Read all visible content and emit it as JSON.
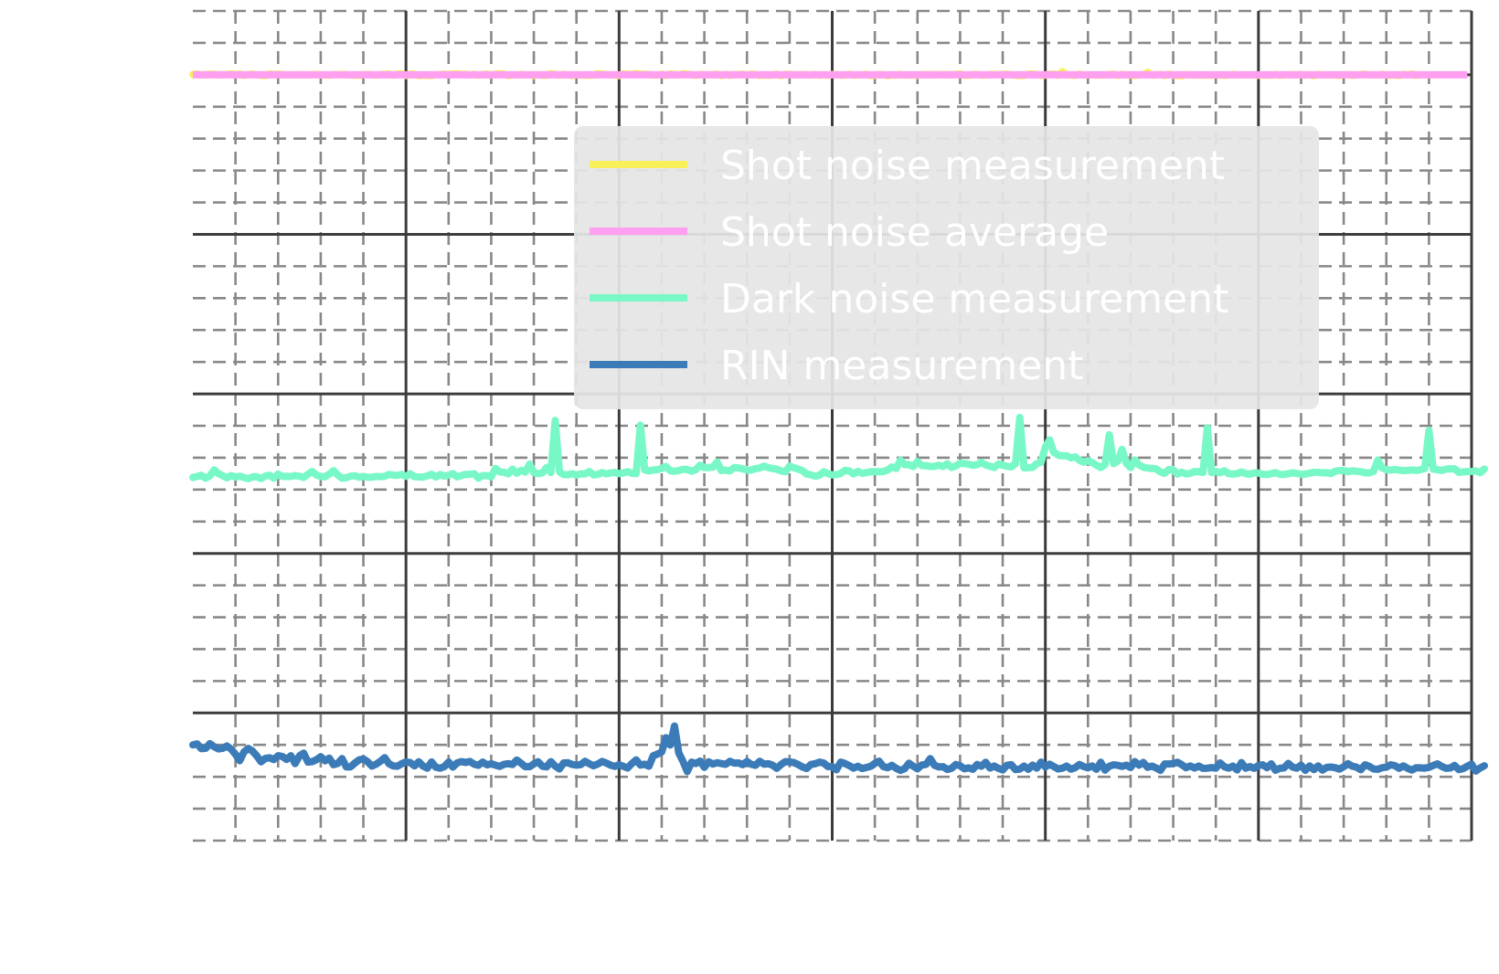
{
  "chart_data": {
    "type": "line",
    "title": "",
    "xlabel": "",
    "ylabel": "",
    "xlim": [
      0,
      300
    ],
    "ylim": [
      -8,
      44
    ],
    "x_major_step": 50,
    "x_minor_step": 10,
    "y_major_step": 10,
    "y_minor_step": 2,
    "grid": true,
    "legend_position": "upper-center-right",
    "x": "0..299 (one point per sample, step 1)",
    "series": [
      {
        "name": "Shot noise measurement",
        "color": "#f7f05a",
        "values": [
          40.02,
          40.05,
          39.98,
          40.01,
          40.04,
          40.03,
          40.0,
          40.0,
          40.02,
          40.05,
          40.01,
          40.05,
          39.96,
          40.02,
          40.04,
          40.0,
          39.96,
          39.94,
          40.06,
          40.01,
          40.04,
          40.01,
          40.0,
          39.99,
          40.0,
          40.01,
          39.99,
          39.99,
          40.02,
          40.03,
          40.0,
          40.0,
          39.97,
          40.02,
          40.01,
          40.03,
          40.02,
          39.98,
          39.98,
          39.96,
          40.01,
          40.02,
          40.01,
          39.97,
          40.02,
          40.03,
          40.05,
          39.97,
          40.05,
          40.06,
          39.95,
          40.05,
          40.05,
          39.95,
          39.97,
          39.96,
          39.95,
          40.01,
          40.01,
          40.04,
          40.02,
          40.05,
          40.06,
          40.03,
          40.04,
          39.99,
          40.04,
          39.97,
          40.02,
          40.04,
          39.98,
          40.04,
          40.06,
          40.04,
          39.95,
          39.99,
          39.99,
          40.03,
          39.99,
          40.01,
          39.94,
          40.01,
          39.97,
          39.97,
          40.07,
          40.03,
          39.97,
          40.03,
          40.01,
          39.95,
          40.02,
          39.98,
          39.96,
          39.96,
          39.98,
          40.08,
          40.03,
          40.03,
          40.0,
          39.99,
          39.94,
          40.06,
          40.03,
          40.03,
          40.08,
          40.04,
          40.03,
          40.03,
          39.98,
          39.99,
          40.04,
          39.95,
          40.06,
          40.02,
          40.0,
          40.06,
          40.05,
          40.0,
          39.96,
          40.03,
          40.01,
          39.99,
          40.01,
          40.04,
          39.94,
          40.04,
          39.96,
          40.02,
          40.01,
          40.04,
          39.99,
          40.04,
          40.03,
          39.95,
          39.98,
          39.96,
          39.98,
          40.05,
          39.94,
          40.02,
          40.04,
          39.99,
          40.01,
          40.01,
          40.01,
          39.97,
          40.03,
          39.97,
          40.01,
          39.96,
          40.02,
          40.01,
          39.97,
          39.98,
          40.04,
          39.97,
          40.0,
          40.0,
          40.04,
          39.95,
          39.96,
          40.03,
          40.01,
          39.94,
          39.99,
          39.97,
          40.03,
          39.98,
          39.98,
          39.99,
          39.96,
          40.02,
          40.01,
          40.01,
          40.01,
          40.01,
          40.03,
          40.01,
          40.0,
          40.02,
          40.06,
          39.96,
          39.96,
          40.02,
          40.03,
          39.97,
          39.99,
          40.01,
          40.03,
          40.01,
          40.02,
          40.04,
          40.0,
          39.97,
          39.94,
          39.96,
          40.04,
          40.05,
          40.02,
          39.96,
          39.97,
          40.03,
          40.05,
          39.96,
          40.2,
          39.98,
          39.99,
          39.96,
          40.05,
          39.98,
          39.99,
          40.0,
          39.98,
          39.98,
          40.0,
          40.01,
          40.05,
          39.96,
          40.04,
          39.99,
          39.98,
          39.95,
          40.0,
          40.0,
          40.15,
          39.97,
          40.0,
          40.03,
          39.95,
          40.05,
          39.97,
          39.95,
          39.93,
          40.02,
          40.0,
          39.97,
          39.99,
          39.98,
          39.98,
          39.97,
          40.01,
          39.98,
          39.96,
          39.98,
          40.03,
          40.0,
          39.98,
          40.0,
          40.0,
          39.99,
          39.96,
          39.99,
          39.98,
          39.97,
          40.03,
          39.96,
          40.0,
          39.99,
          40.01,
          39.99,
          40.03,
          39.97,
          40.02,
          39.93,
          40.03,
          40.0,
          39.98,
          39.99,
          39.99,
          39.95,
          40.0,
          40.02,
          39.96,
          39.99,
          40.02,
          40.04,
          40.0,
          40.0,
          39.98,
          40.04,
          39.98,
          39.96,
          39.99,
          39.95,
          40.03,
          40.0,
          40.05,
          39.96,
          40.0,
          40.0,
          40.0
        ]
      },
      {
        "name": "Shot noise average",
        "color": "#ff9ff0",
        "constant": 40.0
      },
      {
        "name": "Dark noise measurement",
        "color": "#79f8c7",
        "values": [
          14.76,
          14.82,
          14.9,
          14.71,
          14.87,
          15.24,
          15.0,
          14.87,
          14.74,
          14.88,
          14.79,
          14.84,
          14.76,
          14.68,
          14.8,
          14.81,
          14.69,
          14.85,
          14.9,
          14.72,
          14.97,
          14.82,
          14.83,
          14.82,
          14.88,
          14.84,
          14.76,
          14.96,
          15.14,
          14.91,
          14.82,
          14.8,
          14.97,
          15.19,
          14.92,
          14.71,
          14.75,
          14.84,
          14.87,
          14.77,
          14.83,
          14.77,
          14.78,
          14.82,
          14.81,
          14.83,
          14.95,
          14.91,
          14.89,
          14.95,
          14.83,
          14.99,
          14.81,
          14.79,
          14.78,
          14.86,
          14.96,
          14.79,
          14.95,
          14.84,
          14.91,
          15.0,
          14.8,
          14.88,
          14.96,
          14.96,
          14.99,
          14.72,
          14.88,
          14.87,
          14.8,
          15.33,
          15.11,
          15.09,
          14.99,
          15.28,
          15.02,
          15.21,
          15.1,
          15.6,
          15.06,
          15.0,
          15.05,
          15.39,
          15.07,
          18.34,
          15.12,
          14.94,
          14.93,
          15.0,
          14.91,
          14.99,
          14.98,
          15.13,
          14.92,
          14.95,
          15.07,
          14.99,
          15.04,
          15.08,
          15.0,
          15.05,
          15.12,
          15.02,
          15.0,
          18.04,
          15.24,
          15.17,
          15.23,
          15.25,
          15.33,
          15.45,
          15.18,
          15.15,
          15.19,
          15.27,
          15.26,
          15.15,
          15.25,
          15.53,
          15.37,
          15.39,
          15.4,
          15.73,
          15.19,
          15.22,
          15.17,
          15.38,
          15.36,
          15.3,
          15.22,
          15.22,
          15.32,
          15.35,
          15.47,
          15.37,
          15.32,
          15.28,
          15.17,
          15.12,
          15.47,
          15.37,
          15.29,
          15.19,
          14.98,
          14.92,
          14.84,
          14.9,
          15.12,
          15.0,
          14.92,
          14.94,
          15.01,
          15.21,
          15.17,
          14.98,
          15.14,
          15.02,
          15.06,
          15.12,
          15.12,
          15.12,
          15.13,
          15.23,
          15.42,
          15.32,
          15.84,
          15.56,
          15.57,
          15.44,
          15.76,
          15.51,
          15.5,
          15.45,
          15.46,
          15.53,
          15.45,
          15.62,
          15.39,
          15.49,
          15.65,
          15.63,
          15.59,
          15.52,
          15.57,
          15.7,
          15.55,
          15.46,
          15.38,
          15.61,
          15.53,
          15.46,
          15.42,
          15.63,
          18.52,
          15.36,
          15.38,
          15.39,
          15.63,
          15.72,
          16.66,
          17.12,
          16.33,
          16.17,
          16.12,
          16.12,
          15.99,
          16.05,
          15.84,
          15.72,
          15.81,
          15.69,
          15.53,
          15.38,
          15.57,
          17.44,
          15.63,
          15.79,
          16.52,
          15.65,
          15.38,
          15.86,
          15.54,
          15.4,
          15.35,
          15.33,
          15.3,
          15.11,
          15.02,
          15.26,
          15.24,
          14.97,
          15.09,
          14.98,
          15.02,
          15.13,
          15.12,
          15.08,
          17.88,
          15.06,
          15.14,
          15.05,
          15.18,
          15.0,
          14.97,
          15.0,
          15.11,
          15.0,
          14.96,
          15.05,
          15.04,
          14.96,
          14.95,
          15.0,
          15.06,
          14.96,
          14.95,
          15.0,
          15.05,
          15.01,
          14.96,
          14.97,
          15.03,
          15.08,
          15.09,
          15.05,
          15.06,
          15.0,
          15.15,
          15.19,
          15.2,
          15.13,
          15.17,
          15.15,
          15.12,
          15.06,
          15.04,
          15.14,
          15.85,
          15.36,
          15.25,
          15.22,
          15.26,
          15.22,
          15.19,
          15.21,
          15.23,
          15.2,
          15.25,
          15.32,
          17.71,
          15.28,
          15.25,
          15.2,
          15.28,
          15.3,
          15.31,
          15.08,
          15.11,
          15.13,
          15.14,
          15.17,
          15.06,
          15.29
        ]
      },
      {
        "name": "RIN measurement",
        "color": "#3b7bb8",
        "values": [
          -2.0,
          -1.94,
          -2.24,
          -2.22,
          -1.92,
          -2.12,
          -2.25,
          -2.22,
          -2.07,
          -2.27,
          -2.59,
          -2.99,
          -2.44,
          -2.22,
          -2.39,
          -2.69,
          -3.06,
          -2.85,
          -2.81,
          -2.92,
          -2.68,
          -2.73,
          -2.91,
          -2.68,
          -3.17,
          -2.69,
          -2.52,
          -3.08,
          -3.05,
          -2.93,
          -2.74,
          -3.0,
          -2.83,
          -3.24,
          -3.16,
          -2.86,
          -3.38,
          -3.38,
          -3.14,
          -2.94,
          -2.88,
          -3.06,
          -3.33,
          -3.21,
          -3.03,
          -2.8,
          -3.18,
          -3.32,
          -3.34,
          -3.18,
          -3.07,
          -3.11,
          -3.32,
          -3.06,
          -3.33,
          -3.46,
          -3.07,
          -3.4,
          -3.46,
          -3.36,
          -3.07,
          -3.39,
          -3.13,
          -3.05,
          -3.1,
          -3.04,
          -3.21,
          -3.28,
          -3.08,
          -3.25,
          -3.19,
          -3.27,
          -3.35,
          -3.22,
          -3.18,
          -3.23,
          -2.95,
          -3.15,
          -3.37,
          -3.37,
          -3.19,
          -3.06,
          -3.34,
          -3.38,
          -3.05,
          -3.33,
          -3.51,
          -3.13,
          -3.12,
          -3.23,
          -3.27,
          -3.24,
          -3.03,
          -3.18,
          -3.31,
          -3.2,
          -3.04,
          -3.14,
          -3.27,
          -3.35,
          -3.25,
          -3.35,
          -3.45,
          -3.17,
          -2.94,
          -3.27,
          -3.21,
          -3.34,
          -2.68,
          -2.58,
          -2.44,
          -1.55,
          -2.01,
          -0.82,
          -2.5,
          -3.04,
          -3.67,
          -3.08,
          -3.17,
          -3.02,
          -3.41,
          -3.06,
          -3.2,
          -3.12,
          -3.17,
          -3.22,
          -3.03,
          -3.14,
          -3.13,
          -3.24,
          -3.04,
          -3.22,
          -3.28,
          -3.03,
          -3.21,
          -3.18,
          -3.27,
          -3.47,
          -3.23,
          -3.05,
          -3.07,
          -3.11,
          -3.23,
          -3.38,
          -3.48,
          -3.23,
          -3.18,
          -3.08,
          -3.14,
          -3.36,
          -3.36,
          -3.56,
          -3.08,
          -3.17,
          -3.3,
          -3.46,
          -3.34,
          -3.48,
          -3.42,
          -3.35,
          -3.16,
          -3.02,
          -3.36,
          -3.43,
          -3.28,
          -3.47,
          -3.6,
          -3.49,
          -3.15,
          -3.34,
          -3.5,
          -3.26,
          -3.23,
          -2.86,
          -3.28,
          -3.38,
          -3.37,
          -3.54,
          -3.47,
          -3.23,
          -3.31,
          -3.5,
          -3.44,
          -3.53,
          -3.23,
          -3.34,
          -3.09,
          -3.45,
          -3.33,
          -3.47,
          -3.57,
          -3.28,
          -3.24,
          -3.55,
          -3.52,
          -3.33,
          -3.53,
          -3.27,
          -3.46,
          -3.08,
          -3.38,
          -3.21,
          -3.36,
          -3.51,
          -3.46,
          -3.33,
          -3.52,
          -3.43,
          -3.23,
          -3.36,
          -3.44,
          -3.32,
          -3.53,
          -3.09,
          -3.58,
          -3.34,
          -3.25,
          -3.28,
          -3.35,
          -3.27,
          -3.42,
          -3.05,
          -3.27,
          -3.1,
          -3.41,
          -3.33,
          -3.45,
          -3.6,
          -3.2,
          -3.2,
          -3.17,
          -3.09,
          -3.24,
          -3.43,
          -3.32,
          -3.45,
          -3.33,
          -3.47,
          -3.46,
          -3.42,
          -3.46,
          -3.13,
          -3.37,
          -3.46,
          -3.33,
          -3.57,
          -3.11,
          -3.46,
          -3.36,
          -3.47,
          -3.29,
          -3.25,
          -3.43,
          -3.19,
          -3.59,
          -3.47,
          -3.44,
          -3.16,
          -3.39,
          -3.46,
          -3.27,
          -3.6,
          -3.32,
          -3.55,
          -3.32,
          -3.58,
          -3.41,
          -3.39,
          -3.43,
          -3.52,
          -3.37,
          -3.18,
          -3.33,
          -3.4,
          -3.56,
          -3.25,
          -3.35,
          -3.51,
          -3.53,
          -3.43,
          -3.4,
          -3.25,
          -3.3,
          -3.47,
          -3.32,
          -3.47,
          -3.58,
          -3.43,
          -3.44,
          -3.46,
          -3.41,
          -3.29,
          -3.19,
          -3.35,
          -3.47,
          -3.45,
          -3.29,
          -3.55,
          -3.49,
          -3.34,
          -3.21,
          -3.64,
          -3.45,
          -3.31
        ]
      }
    ]
  }
}
